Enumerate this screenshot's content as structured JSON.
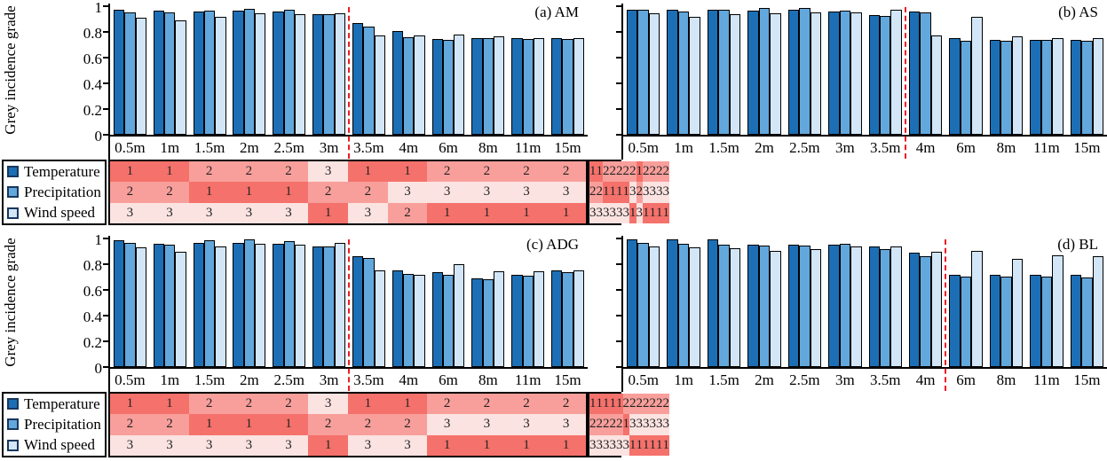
{
  "colors": {
    "temperature_bar": "#1D6FB5",
    "precipitation_bar": "#63A8DC",
    "wind_speed_bar": "#D2E6F7",
    "bar_outline": "#000000",
    "rank_1_cell": "#F5716B",
    "rank_2_cell": "#F89F9B",
    "rank_3_cell": "#FBE3E1",
    "dashed_line": "#ED1C24",
    "legend_swatch_border": "#17375E"
  },
  "y_axis": {
    "label": "Grey incidence grade",
    "tick_labels": [
      "0",
      "0.2",
      "0.4",
      "0.6",
      "0.8",
      "1"
    ],
    "tick_values": [
      0,
      0.2,
      0.4,
      0.6,
      0.8,
      1
    ]
  },
  "legend": {
    "entries": [
      {
        "label": "Temperature"
      },
      {
        "label": "Precipitation"
      },
      {
        "label": "Wind speed"
      }
    ]
  },
  "chart_data": [
    {
      "type": "bar",
      "id": "a",
      "panel_label": "(a) AM",
      "ylabel": "Grey incidence grade",
      "ylim": [
        0,
        1
      ],
      "categories": [
        "0.5m",
        "1m",
        "1.5m",
        "2m",
        "2.5m",
        "3m",
        "3.5m",
        "4m",
        "6m",
        "8m",
        "11m",
        "15m"
      ],
      "series": [
        {
          "name": "Temperature",
          "color": "#1D6FB5",
          "values": [
            0.97,
            0.965,
            0.96,
            0.965,
            0.96,
            0.935,
            0.87,
            0.81,
            0.745,
            0.755,
            0.75,
            0.75
          ]
        },
        {
          "name": "Precipitation",
          "color": "#63A8DC",
          "values": [
            0.95,
            0.955,
            0.965,
            0.98,
            0.97,
            0.94,
            0.84,
            0.76,
            0.735,
            0.75,
            0.745,
            0.745
          ]
        },
        {
          "name": "Wind speed",
          "color": "#D2E6F7",
          "values": [
            0.91,
            0.89,
            0.92,
            0.945,
            0.94,
            0.945,
            0.77,
            0.775,
            0.78,
            0.765,
            0.755,
            0.755
          ]
        }
      ],
      "rank_rows": [
        {
          "name": "Temperature",
          "ranks": [
            1,
            1,
            2,
            2,
            2,
            3,
            1,
            1,
            2,
            2,
            2,
            2
          ]
        },
        {
          "name": "Precipitation",
          "ranks": [
            2,
            2,
            1,
            1,
            1,
            2,
            2,
            3,
            3,
            3,
            3,
            3
          ]
        },
        {
          "name": "Wind speed",
          "ranks": [
            3,
            3,
            3,
            3,
            3,
            1,
            3,
            2,
            1,
            1,
            1,
            1
          ]
        }
      ],
      "dashed_line_after_category": "3m",
      "show_y_axis_labels": true,
      "show_legend": true
    },
    {
      "type": "bar",
      "id": "b",
      "panel_label": "(b) AS",
      "ylim": [
        0,
        1
      ],
      "categories": [
        "0.5m",
        "1m",
        "1.5m",
        "2m",
        "2.5m",
        "3m",
        "3.5m",
        "4m",
        "6m",
        "8m",
        "11m",
        "15m"
      ],
      "series": [
        {
          "name": "Temperature",
          "color": "#1D6FB5",
          "values": [
            0.975,
            0.975,
            0.97,
            0.965,
            0.975,
            0.96,
            0.93,
            0.96,
            0.755,
            0.735,
            0.74,
            0.735
          ]
        },
        {
          "name": "Precipitation",
          "color": "#63A8DC",
          "values": [
            0.97,
            0.96,
            0.975,
            0.985,
            0.985,
            0.965,
            0.925,
            0.95,
            0.73,
            0.73,
            0.735,
            0.73
          ]
        },
        {
          "name": "Wind speed",
          "color": "#D2E6F7",
          "values": [
            0.945,
            0.92,
            0.94,
            0.945,
            0.955,
            0.955,
            0.97,
            0.77,
            0.92,
            0.765,
            0.75,
            0.75
          ]
        }
      ],
      "rank_rows": [
        {
          "name": "Temperature",
          "ranks": [
            1,
            1,
            2,
            2,
            2,
            2,
            2,
            1,
            2,
            2,
            2,
            2
          ]
        },
        {
          "name": "Precipitation",
          "ranks": [
            2,
            2,
            1,
            1,
            1,
            1,
            3,
            2,
            3,
            3,
            3,
            3
          ]
        },
        {
          "name": "Wind speed",
          "ranks": [
            3,
            3,
            3,
            3,
            3,
            3,
            1,
            3,
            1,
            1,
            1,
            1
          ]
        }
      ],
      "dashed_line_after_category": "3.5m",
      "show_y_axis_labels": false,
      "show_legend": false
    },
    {
      "type": "bar",
      "id": "c",
      "panel_label": "(c) ADG",
      "ylabel": "Grey incidence grade",
      "ylim": [
        0,
        1
      ],
      "categories": [
        "0.5m",
        "1m",
        "1.5m",
        "2m",
        "2.5m",
        "3m",
        "3.5m",
        "4m",
        "6m",
        "8m",
        "11m",
        "15m"
      ],
      "series": [
        {
          "name": "Temperature",
          "color": "#1D6FB5",
          "values": [
            0.985,
            0.96,
            0.965,
            0.965,
            0.96,
            0.935,
            0.86,
            0.755,
            0.735,
            0.69,
            0.72,
            0.75
          ]
        },
        {
          "name": "Precipitation",
          "color": "#63A8DC",
          "values": [
            0.965,
            0.955,
            0.985,
            0.995,
            0.98,
            0.94,
            0.845,
            0.725,
            0.72,
            0.685,
            0.71,
            0.74
          ]
        },
        {
          "name": "Wind speed",
          "color": "#D2E6F7",
          "values": [
            0.93,
            0.895,
            0.94,
            0.96,
            0.955,
            0.965,
            0.755,
            0.72,
            0.8,
            0.745,
            0.745,
            0.755
          ]
        }
      ],
      "rank_rows": [
        {
          "name": "Temperature",
          "ranks": [
            1,
            1,
            2,
            2,
            2,
            3,
            1,
            1,
            2,
            2,
            2,
            2
          ]
        },
        {
          "name": "Precipitation",
          "ranks": [
            2,
            2,
            1,
            1,
            1,
            2,
            2,
            2,
            3,
            3,
            3,
            3
          ]
        },
        {
          "name": "Wind speed",
          "ranks": [
            3,
            3,
            3,
            3,
            3,
            1,
            3,
            3,
            1,
            1,
            1,
            1
          ]
        }
      ],
      "dashed_line_after_category": "3m",
      "show_y_axis_labels": true,
      "show_legend": true
    },
    {
      "type": "bar",
      "id": "d",
      "panel_label": "(d) BL",
      "ylim": [
        0,
        1
      ],
      "categories": [
        "0.5m",
        "1m",
        "1.5m",
        "2m",
        "2.5m",
        "3m",
        "3.5m",
        "4m",
        "6m",
        "8m",
        "11m",
        "15m"
      ],
      "series": [
        {
          "name": "Temperature",
          "color": "#1D6FB5",
          "values": [
            0.99,
            0.99,
            0.99,
            0.955,
            0.95,
            0.955,
            0.935,
            0.89,
            0.72,
            0.72,
            0.72,
            0.72
          ]
        },
        {
          "name": "Precipitation",
          "color": "#63A8DC",
          "values": [
            0.965,
            0.96,
            0.955,
            0.945,
            0.945,
            0.96,
            0.92,
            0.865,
            0.7,
            0.7,
            0.7,
            0.695
          ]
        },
        {
          "name": "Wind speed",
          "color": "#D2E6F7",
          "values": [
            0.935,
            0.93,
            0.925,
            0.9,
            0.915,
            0.935,
            0.94,
            0.895,
            0.9,
            0.84,
            0.87,
            0.865
          ]
        }
      ],
      "rank_rows": [
        {
          "name": "Temperature",
          "ranks": [
            1,
            1,
            1,
            1,
            1,
            2,
            2,
            2,
            2,
            2,
            2,
            2
          ]
        },
        {
          "name": "Precipitation",
          "ranks": [
            2,
            2,
            2,
            2,
            2,
            1,
            3,
            3,
            3,
            3,
            3,
            3
          ]
        },
        {
          "name": "Wind speed",
          "ranks": [
            3,
            3,
            3,
            3,
            3,
            3,
            1,
            1,
            1,
            1,
            1,
            1
          ]
        }
      ],
      "dashed_line_after_category": "4m",
      "show_y_axis_labels": false,
      "show_legend": false
    }
  ]
}
